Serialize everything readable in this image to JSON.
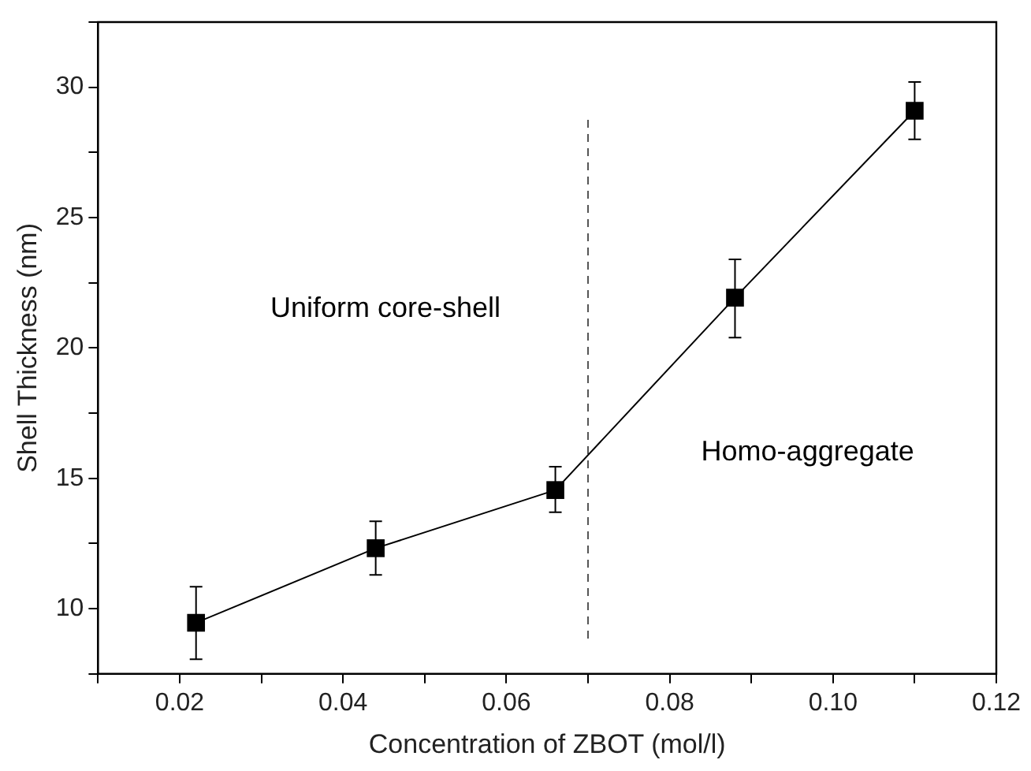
{
  "chart_data": {
    "type": "line",
    "xlabel": "Concentration of ZBOT (mol/l)",
    "ylabel": "Shell Thickness (nm)",
    "x": [
      0.022,
      0.044,
      0.066,
      0.088,
      0.11
    ],
    "series": [
      {
        "color": "#000000",
        "values": [
          9.46,
          12.32,
          14.55,
          21.93,
          29.1
        ],
        "errors": [
          [
            8.06,
            10.84
          ],
          [
            11.3,
            13.35
          ],
          [
            13.7,
            15.45
          ],
          [
            20.4,
            23.4
          ],
          [
            28.0,
            30.2
          ]
        ]
      }
    ],
    "marker": "square",
    "line_style": "solid",
    "grid": false,
    "legend": false,
    "xlim": [
      0.01,
      0.12
    ],
    "xticks": [
      {
        "value": 0.01,
        "label": null
      },
      0.02,
      {
        "value": 0.03,
        "label": null
      },
      0.04,
      {
        "value": 0.05,
        "label": null
      },
      0.06,
      {
        "value": 0.07,
        "label": null
      },
      0.08,
      {
        "value": 0.09,
        "label": null
      },
      {
        "value": 0.1,
        "label": "0.10"
      },
      {
        "value": 0.11,
        "label": null
      },
      0.12
    ],
    "ylim": [
      7.5,
      32.5
    ],
    "yticks": [
      {
        "value": 7.5,
        "label": null
      },
      10,
      {
        "value": 12.5,
        "label": null
      },
      15,
      {
        "value": 17.5,
        "label": null
      },
      20,
      {
        "value": 22.5,
        "label": null
      },
      25,
      {
        "value": 27.5,
        "label": null
      },
      30,
      {
        "value": 32.5,
        "label": null
      }
    ],
    "ref_lines": [
      {
        "axis": "x",
        "value": 0.07,
        "color": "#555555",
        "line_style": "dashed"
      }
    ],
    "annotations": [
      "Uniform core-shell",
      "Homo-aggregate"
    ]
  }
}
